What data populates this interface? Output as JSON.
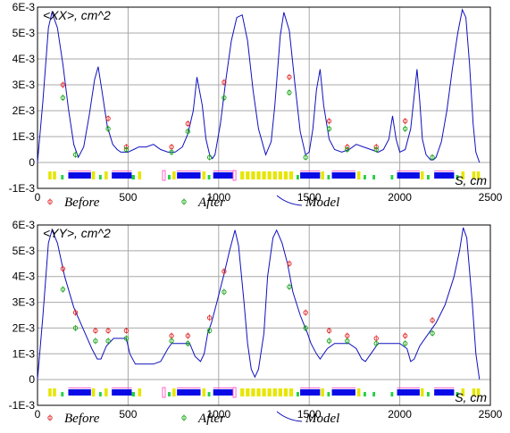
{
  "colors": {
    "model": "#1010c0",
    "before": "#e02020",
    "after": "#10a010",
    "grid": "#a8a8a8",
    "dipole": "#0a0ae6",
    "quad": "#e6e600",
    "sext": "#20d040",
    "corrector": "#ff66cc"
  },
  "legend": {
    "before": "Before",
    "after": "After",
    "model": "Model"
  },
  "axis": {
    "s_unit": "S, cm"
  },
  "chart_data": [
    {
      "type": "line",
      "title": "<XX>, cm^2",
      "xlabel": "S, cm",
      "xlim": [
        0,
        2500
      ],
      "ylim": [
        -0.001,
        0.006
      ],
      "x_ticks": [
        0,
        500,
        1000,
        1500,
        2000,
        2500
      ],
      "x_tick_labels": [
        "0",
        "500",
        "1000",
        "1500",
        "2000",
        "2500"
      ],
      "y_ticks": [
        -0.001,
        0,
        0.001,
        0.002,
        0.003,
        0.004,
        0.005,
        0.006
      ],
      "y_tick_labels": [
        "-1E-3",
        "0",
        "1E-3",
        "2E-3",
        "3E-3",
        "4E-3",
        "5E-3",
        "6E-3"
      ],
      "grid": true,
      "series": [
        {
          "name": "Model",
          "style": "line",
          "x": [
            0,
            30,
            60,
            80,
            110,
            140,
            170,
            200,
            225,
            255,
            285,
            315,
            335,
            355,
            385,
            415,
            440,
            460,
            480,
            500,
            530,
            560,
            600,
            640,
            680,
            720,
            760,
            800,
            830,
            860,
            880,
            910,
            930,
            950,
            965,
            980,
            1010,
            1040,
            1070,
            1100,
            1130,
            1160,
            1190,
            1220,
            1260,
            1290,
            1310,
            1340,
            1360,
            1390,
            1420,
            1450,
            1480,
            1500,
            1520,
            1540,
            1560,
            1580,
            1610,
            1640,
            1680,
            1720,
            1760,
            1800,
            1840,
            1880,
            1910,
            1940,
            1960,
            1980,
            2000,
            2030,
            2060,
            2080,
            2095,
            2110,
            2125,
            2145,
            2170,
            2185,
            2200,
            2230,
            2260,
            2290,
            2320,
            2345,
            2365,
            2385,
            2405,
            2420,
            2440
          ],
          "y": [
            0,
            0.0024,
            0.0052,
            0.0058,
            0.0052,
            0.0038,
            0.0021,
            0.0007,
            0.0002,
            0.0006,
            0.0018,
            0.0032,
            0.0037,
            0.0028,
            0.0014,
            0.0007,
            0.0005,
            0.0004,
            0.0004,
            0.0004,
            0.0005,
            0.0006,
            0.0006,
            0.0007,
            0.0005,
            0.0004,
            0.0004,
            0.0006,
            0.0011,
            0.002,
            0.0033,
            0.0022,
            0.0009,
            0.0003,
            0.00015,
            0.0003,
            0.0015,
            0.0032,
            0.0047,
            0.0056,
            0.0057,
            0.0047,
            0.0028,
            0.0013,
            0.0003,
            0.0008,
            0.0022,
            0.0049,
            0.0058,
            0.0051,
            0.0031,
            0.0012,
            0.0003,
            0.0004,
            0.0013,
            0.0028,
            0.0036,
            0.0022,
            0.0009,
            0.0005,
            0.0004,
            0.0005,
            0.0007,
            0.0006,
            0.0005,
            0.0004,
            0.0005,
            0.0009,
            0.0018,
            0.0009,
            0.0004,
            0.0005,
            0.0013,
            0.0026,
            0.0036,
            0.0024,
            0.0009,
            0.0003,
            0.0001,
            0.0001,
            0.0002,
            0.0008,
            0.002,
            0.0036,
            0.005,
            0.0059,
            0.0056,
            0.0038,
            0.0015,
            0.0004,
            0
          ]
        },
        {
          "name": "Before",
          "style": "points",
          "x": [
            140,
            390,
            490,
            740,
            830,
            1030,
            1390,
            1610,
            1710,
            1870,
            2030
          ],
          "y": [
            0.003,
            0.0017,
            0.0006,
            0.0006,
            0.0015,
            0.0031,
            0.0033,
            0.0016,
            0.0006,
            0.0006,
            0.0016
          ]
        },
        {
          "name": "After",
          "style": "points",
          "x": [
            140,
            210,
            390,
            490,
            740,
            830,
            950,
            1030,
            1390,
            1480,
            1610,
            1710,
            1870,
            2030,
            2180
          ],
          "y": [
            0.0025,
            0.0003,
            0.0013,
            0.0005,
            0.0004,
            0.0012,
            0.0002,
            0.0025,
            0.0027,
            0.0002,
            0.0013,
            0.0005,
            0.0005,
            0.0013,
            0.0002
          ]
        }
      ]
    },
    {
      "type": "line",
      "title": "<YY>, cm^2",
      "xlabel": "S, cm",
      "xlim": [
        0,
        2500
      ],
      "ylim": [
        -0.001,
        0.006
      ],
      "x_ticks": [
        0,
        500,
        1000,
        1500,
        2000,
        2500
      ],
      "x_tick_labels": [
        "0",
        "500",
        "1000",
        "1500",
        "2000",
        "2500"
      ],
      "y_ticks": [
        -0.001,
        0,
        0.001,
        0.002,
        0.003,
        0.004,
        0.005,
        0.006
      ],
      "y_tick_labels": [
        "-1E-3",
        "0",
        "1E-3",
        "2E-3",
        "3E-3",
        "4E-3",
        "5E-3",
        "6E-3"
      ],
      "grid": true,
      "series": [
        {
          "name": "Model",
          "style": "line",
          "x": [
            0,
            30,
            60,
            80,
            110,
            150,
            200,
            250,
            300,
            330,
            350,
            380,
            420,
            460,
            490,
            510,
            540,
            560,
            600,
            640,
            680,
            720,
            740,
            770,
            800,
            840,
            870,
            900,
            920,
            940,
            960,
            990,
            1030,
            1060,
            1090,
            1110,
            1140,
            1160,
            1180,
            1200,
            1220,
            1250,
            1270,
            1300,
            1320,
            1350,
            1380,
            1410,
            1450,
            1490,
            1510,
            1540,
            1560,
            1600,
            1640,
            1680,
            1720,
            1760,
            1790,
            1810,
            1840,
            1880,
            1920,
            1960,
            2000,
            2040,
            2060,
            2080,
            2110,
            2150,
            2200,
            2250,
            2300,
            2330,
            2350,
            2370,
            2400,
            2420,
            2440
          ],
          "y": [
            0,
            0.0025,
            0.0053,
            0.0058,
            0.0053,
            0.004,
            0.0028,
            0.002,
            0.0012,
            0.0008,
            0.0008,
            0.0013,
            0.0016,
            0.0016,
            0.0016,
            0.001,
            0.0006,
            0.0006,
            0.0006,
            0.0006,
            0.0007,
            0.0012,
            0.0014,
            0.0014,
            0.0014,
            0.0014,
            0.0009,
            0.0007,
            0.001,
            0.0018,
            0.0022,
            0.003,
            0.0041,
            0.005,
            0.0058,
            0.0052,
            0.003,
            0.0014,
            0.0004,
            0.0001,
            0.0004,
            0.0018,
            0.004,
            0.0055,
            0.0058,
            0.0053,
            0.0045,
            0.0034,
            0.0025,
            0.0018,
            0.0014,
            0.001,
            0.0008,
            0.0012,
            0.0014,
            0.0014,
            0.0014,
            0.0012,
            0.0008,
            0.0007,
            0.001,
            0.0014,
            0.0014,
            0.0014,
            0.0014,
            0.0012,
            0.0007,
            0.0008,
            0.0013,
            0.0017,
            0.0022,
            0.0029,
            0.004,
            0.005,
            0.0059,
            0.0055,
            0.003,
            0.001,
            0
          ]
        },
        {
          "name": "Before",
          "style": "points",
          "x": [
            140,
            210,
            320,
            390,
            490,
            740,
            830,
            950,
            1030,
            1390,
            1480,
            1610,
            1710,
            1870,
            2030,
            2180
          ],
          "y": [
            0.0043,
            0.0026,
            0.0019,
            0.0019,
            0.0019,
            0.0017,
            0.0017,
            0.0024,
            0.0042,
            0.0045,
            0.0026,
            0.0019,
            0.0017,
            0.0016,
            0.0017,
            0.0023
          ]
        },
        {
          "name": "After",
          "style": "points",
          "x": [
            140,
            210,
            320,
            390,
            490,
            740,
            830,
            950,
            1030,
            1390,
            1480,
            1610,
            1710,
            1870,
            2030,
            2180
          ],
          "y": [
            0.0035,
            0.002,
            0.0015,
            0.0015,
            0.0016,
            0.0015,
            0.0014,
            0.0019,
            0.0034,
            0.0036,
            0.002,
            0.0015,
            0.0015,
            0.0014,
            0.0014,
            0.0018
          ]
        }
      ]
    }
  ],
  "lattice": {
    "elements": [
      {
        "type": "quad",
        "s": 60,
        "len": 50
      },
      {
        "type": "sext",
        "s": 130,
        "len": 20
      },
      {
        "type": "dipole",
        "s": 170,
        "len": 125
      },
      {
        "type": "quad",
        "s": 300,
        "len": 25
      },
      {
        "type": "sext",
        "s": 340,
        "len": 20
      },
      {
        "type": "quad",
        "s": 370,
        "len": 25
      },
      {
        "type": "dipole",
        "s": 410,
        "len": 110
      },
      {
        "type": "sext",
        "s": 520,
        "len": 25
      },
      {
        "type": "quad",
        "s": 555,
        "len": 25
      },
      {
        "type": "corrector",
        "s": 690,
        "len": 15
      },
      {
        "type": "sext",
        "s": 720,
        "len": 20
      },
      {
        "type": "quad",
        "s": 745,
        "len": 25
      },
      {
        "type": "dipole",
        "s": 770,
        "len": 130
      },
      {
        "type": "quad",
        "s": 910,
        "len": 25
      },
      {
        "type": "sext",
        "s": 940,
        "len": 20
      },
      {
        "type": "dipole",
        "s": 970,
        "len": 110
      },
      {
        "type": "corrector",
        "s": 1080,
        "len": 15
      },
      {
        "type": "quad",
        "s": 1120,
        "len": 300
      },
      {
        "type": "sext",
        "s": 1430,
        "len": 20
      },
      {
        "type": "dipole",
        "s": 1450,
        "len": 110
      },
      {
        "type": "quad",
        "s": 1565,
        "len": 25
      },
      {
        "type": "sext",
        "s": 1600,
        "len": 20
      },
      {
        "type": "dipole",
        "s": 1625,
        "len": 130
      },
      {
        "type": "quad",
        "s": 1765,
        "len": 25
      },
      {
        "type": "sext",
        "s": 1800,
        "len": 20
      },
      {
        "type": "sext",
        "s": 1850,
        "len": 20
      },
      {
        "type": "sext",
        "s": 1950,
        "len": 20
      },
      {
        "type": "dipole",
        "s": 1985,
        "len": 125
      },
      {
        "type": "quad",
        "s": 2115,
        "len": 25
      },
      {
        "type": "sext",
        "s": 2150,
        "len": 20
      },
      {
        "type": "dipole",
        "s": 2190,
        "len": 110
      },
      {
        "type": "sext",
        "s": 2310,
        "len": 20
      },
      {
        "type": "quad",
        "s": 2340,
        "len": 25
      },
      {
        "type": "quad",
        "s": 2400,
        "len": 50
      }
    ]
  }
}
